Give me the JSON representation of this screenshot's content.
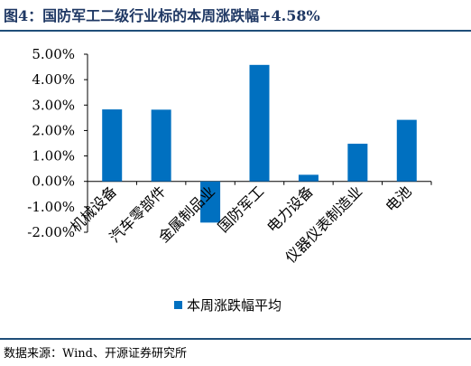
{
  "title": "图4：国防军工二级行业标的本周涨跌幅+4.58%",
  "source": "数据来源：Wind、开源证券研究所",
  "chart_data": {
    "type": "bar",
    "categories": [
      "机械设备",
      "汽车零部件",
      "金属制品业",
      "国防军工",
      "电力设备",
      "仪器仪表制造业",
      "电池"
    ],
    "series": [
      {
        "name": "本周涨跌幅平均",
        "values": [
          2.83,
          2.82,
          -1.62,
          4.58,
          0.26,
          1.48,
          2.42
        ]
      }
    ],
    "ylim": [
      -2.0,
      5.0
    ],
    "yticks": [
      "-2.00%",
      "-1.00%",
      "0.00%",
      "1.00%",
      "2.00%",
      "3.00%",
      "4.00%",
      "5.00%"
    ],
    "ytick_values": [
      -2,
      -1,
      0,
      1,
      2,
      3,
      4,
      5
    ],
    "grid": false,
    "legend_position": "bottom",
    "bar_color": "#0070c0"
  }
}
